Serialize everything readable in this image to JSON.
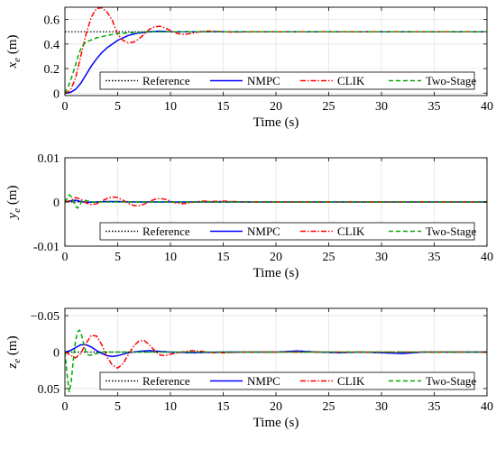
{
  "figure": {
    "legend_labels": [
      "Reference",
      "NMPC",
      "CLIK",
      "Two-Stage"
    ]
  },
  "chart_data": [
    {
      "type": "line",
      "title": "",
      "xlabel": "Time (s)",
      "ylabel_main": "x",
      "ylabel_sub": "e",
      "ylabel_unit": " (m)",
      "xlim": [
        0,
        40
      ],
      "ylim": [
        -0.02,
        0.7
      ],
      "y_reversed": false,
      "xticks": [
        "0",
        "5",
        "10",
        "15",
        "20",
        "25",
        "30",
        "35",
        "40"
      ],
      "yticks": [
        {
          "v": 0,
          "label": "0"
        },
        {
          "v": 0.2,
          "label": "0.2"
        },
        {
          "v": 0.4,
          "label": "0.4"
        },
        {
          "v": 0.6,
          "label": "0.6"
        }
      ],
      "grid": true,
      "legend_position": "bottom-right",
      "series": [
        {
          "name": "Reference",
          "color": "#000000",
          "dash": "1.5,2",
          "x": [
            0,
            40
          ],
          "y": [
            0.5,
            0.5
          ]
        },
        {
          "name": "NMPC",
          "color": "#0000ff",
          "dash": "",
          "x": [
            0,
            0.5,
            1,
            1.5,
            2,
            2.5,
            3,
            3.5,
            4,
            4.5,
            5,
            5.5,
            6,
            7,
            8,
            9,
            10,
            12,
            14,
            16,
            20,
            30,
            40
          ],
          "y": [
            0,
            0.005,
            0.03,
            0.08,
            0.15,
            0.22,
            0.28,
            0.33,
            0.37,
            0.4,
            0.43,
            0.45,
            0.47,
            0.49,
            0.5,
            0.505,
            0.5,
            0.5,
            0.5,
            0.5,
            0.5,
            0.5,
            0.5
          ]
        },
        {
          "name": "CLIK",
          "color": "#ff0000",
          "dash": "6,2,1.5,2",
          "x": [
            0,
            0.5,
            1,
            1.5,
            2,
            2.5,
            3,
            3.5,
            4,
            4.5,
            5,
            5.5,
            6,
            6.5,
            7,
            7.5,
            8,
            8.5,
            9,
            9.5,
            10,
            10.5,
            11,
            11.5,
            12,
            12.5,
            13,
            14,
            15,
            16,
            17,
            18,
            20,
            25,
            30,
            40
          ],
          "y": [
            0,
            0.02,
            0.12,
            0.3,
            0.48,
            0.62,
            0.69,
            0.695,
            0.66,
            0.59,
            0.48,
            0.43,
            0.41,
            0.415,
            0.44,
            0.48,
            0.52,
            0.54,
            0.545,
            0.53,
            0.51,
            0.49,
            0.48,
            0.48,
            0.487,
            0.495,
            0.503,
            0.506,
            0.5,
            0.497,
            0.499,
            0.5,
            0.5,
            0.5,
            0.5,
            0.5
          ]
        },
        {
          "name": "Two-Stage",
          "color": "#00aa00",
          "dash": "5,3",
          "x": [
            0,
            0.3,
            0.6,
            0.9,
            1.2,
            1.5,
            1.8,
            2.1,
            2.4,
            2.7,
            3,
            3.5,
            4,
            5,
            6,
            7,
            8,
            10,
            12,
            20,
            40
          ],
          "y": [
            0,
            0.05,
            0.12,
            0.2,
            0.29,
            0.36,
            0.4,
            0.42,
            0.43,
            0.44,
            0.45,
            0.46,
            0.47,
            0.485,
            0.49,
            0.495,
            0.5,
            0.5,
            0.5,
            0.5,
            0.5
          ]
        }
      ]
    },
    {
      "type": "line",
      "title": "",
      "xlabel": "Time (s)",
      "ylabel_main": "y",
      "ylabel_sub": "e",
      "ylabel_unit": " (m)",
      "xlim": [
        0,
        40
      ],
      "ylim": [
        -0.01,
        0.01
      ],
      "y_reversed": false,
      "xticks": [
        "0",
        "5",
        "10",
        "15",
        "20",
        "25",
        "30",
        "35",
        "40"
      ],
      "yticks": [
        {
          "v": -0.01,
          "label": "-0.01"
        },
        {
          "v": 0,
          "label": "0"
        },
        {
          "v": 0.01,
          "label": "0.01"
        }
      ],
      "grid": true,
      "legend_position": "bottom-right",
      "series": [
        {
          "name": "Reference",
          "color": "#000000",
          "dash": "1.5,2",
          "x": [
            0,
            40
          ],
          "y": [
            0,
            0
          ]
        },
        {
          "name": "NMPC",
          "color": "#0000ff",
          "dash": "",
          "x": [
            0,
            0.5,
            1,
            1.5,
            2,
            3,
            4,
            5,
            6,
            8,
            10,
            15,
            20,
            40
          ],
          "y": [
            0,
            0.0002,
            0.0004,
            0.0001,
            -0.0001,
            0,
            0.0001,
            0.0001,
            0,
            0,
            0,
            0,
            0,
            0
          ]
        },
        {
          "name": "CLIK",
          "color": "#ff0000",
          "dash": "6,2,1.5,2",
          "x": [
            0,
            0.5,
            1,
            1.5,
            2,
            2.5,
            3,
            3.5,
            4,
            4.5,
            5,
            5.5,
            6,
            6.5,
            7,
            7.5,
            8,
            8.5,
            9,
            9.5,
            10,
            10.5,
            11,
            11.5,
            12,
            13,
            14,
            15,
            16,
            17,
            18,
            20,
            40
          ],
          "y": [
            0,
            0.0003,
            0.001,
            0.0006,
            -0.0002,
            -0.0006,
            -0.0004,
            0.0002,
            0.0008,
            0.0011,
            0.001,
            0.0004,
            -0.0003,
            -0.0008,
            -0.0009,
            -0.0005,
            0.0001,
            0.0006,
            0.0008,
            0.0006,
            0.0002,
            -0.0002,
            -0.0004,
            -0.0003,
            -0.0001,
            0.0002,
            0.0001,
            0.0002,
            0.0001,
            0,
            0,
            0,
            0
          ]
        },
        {
          "name": "Two-Stage",
          "color": "#00aa00",
          "dash": "5,3",
          "x": [
            0,
            0.2,
            0.4,
            0.6,
            0.8,
            1,
            1.2,
            1.4,
            1.6,
            1.8,
            2,
            2.5,
            3,
            4,
            5,
            40
          ],
          "y": [
            0,
            0.0008,
            0.0016,
            0.0012,
            0.0002,
            -0.001,
            -0.0014,
            -0.0008,
            0.0002,
            0.0005,
            0.0003,
            0,
            0,
            0,
            0,
            0
          ]
        }
      ]
    },
    {
      "type": "line",
      "title": "",
      "xlabel": "Time (s)",
      "ylabel_main": "z",
      "ylabel_sub": "e",
      "ylabel_unit": " (m)",
      "xlim": [
        0,
        40
      ],
      "ylim": [
        -0.06,
        0.06
      ],
      "y_reversed": true,
      "xticks": [
        "0",
        "5",
        "10",
        "15",
        "20",
        "25",
        "30",
        "35",
        "40"
      ],
      "yticks": [
        {
          "v": -0.05,
          "label": "−0.05"
        },
        {
          "v": 0,
          "label": "0"
        },
        {
          "v": 0.05,
          "label": "0.05"
        }
      ],
      "grid": true,
      "legend_position": "bottom-right",
      "series": [
        {
          "name": "Reference",
          "color": "#000000",
          "dash": "1.5,2",
          "x": [
            0,
            40
          ],
          "y": [
            0,
            0
          ]
        },
        {
          "name": "NMPC",
          "color": "#0000ff",
          "dash": "",
          "x": [
            0,
            0.5,
            1,
            1.5,
            2,
            2.5,
            3,
            3.5,
            4,
            4.5,
            5,
            5.5,
            6,
            7,
            8,
            9,
            10,
            12,
            15,
            20,
            22,
            24,
            26,
            28,
            30,
            32,
            34,
            36,
            40
          ],
          "y": [
            0,
            -0.002,
            -0.006,
            -0.01,
            -0.01,
            -0.007,
            -0.002,
            0.002,
            0.005,
            0.006,
            0.005,
            0.003,
            0.001,
            -0.001,
            -0.002,
            -0.001,
            0,
            0.001,
            0,
            0,
            -0.0015,
            0,
            0.001,
            0,
            0.001,
            0.002,
            0,
            0,
            0
          ]
        },
        {
          "name": "CLIK",
          "color": "#ff0000",
          "dash": "6,2,1.5,2",
          "x": [
            0,
            0.5,
            1,
            1.5,
            2,
            2.5,
            3,
            3.5,
            4,
            4.5,
            5,
            5.5,
            6,
            6.5,
            7,
            7.5,
            8,
            8.5,
            9,
            9.5,
            10,
            11,
            12,
            13,
            14,
            15,
            17,
            20,
            25,
            30,
            35,
            40
          ],
          "y": [
            0,
            0.004,
            0.008,
            0.002,
            -0.012,
            -0.023,
            -0.022,
            -0.01,
            0.007,
            0.018,
            0.022,
            0.016,
            0.004,
            -0.008,
            -0.015,
            -0.016,
            -0.01,
            -0.002,
            0.004,
            0.005,
            0.003,
            0,
            -0.002,
            -0.001,
            0.001,
            0.001,
            0,
            0,
            0,
            0,
            0,
            0
          ]
        },
        {
          "name": "Two-Stage",
          "color": "#00aa00",
          "dash": "5,3",
          "x": [
            0,
            0.2,
            0.4,
            0.6,
            0.8,
            1,
            1.2,
            1.4,
            1.6,
            1.8,
            2,
            2.2,
            2.5,
            3,
            3.5,
            4,
            5,
            6,
            8,
            40
          ],
          "y": [
            0,
            0.03,
            0.055,
            0.04,
            0.01,
            -0.015,
            -0.028,
            -0.03,
            -0.022,
            -0.01,
            0,
            0.004,
            0.004,
            0.002,
            0,
            0,
            0,
            0,
            0,
            0
          ]
        }
      ]
    }
  ]
}
